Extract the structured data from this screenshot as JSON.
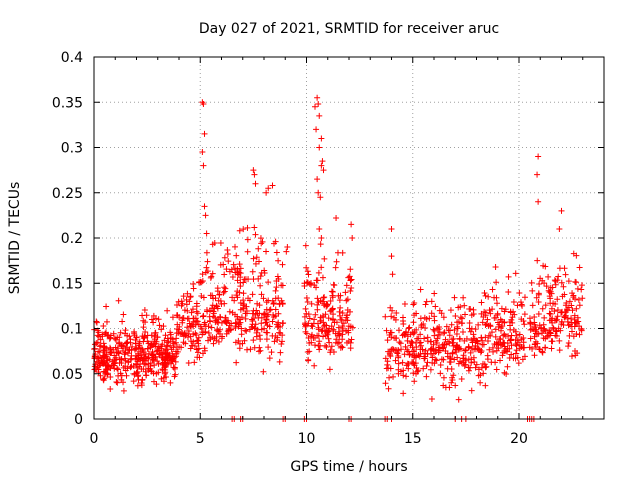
{
  "chart_data": {
    "type": "scatter",
    "title": "Day 027 of 2021, SRMTID for receiver aruc",
    "xlabel": "GPS time / hours",
    "ylabel": "SRMTID / TECUs",
    "xlim": [
      0,
      24
    ],
    "ylim": [
      0,
      0.4
    ],
    "grid": true,
    "marker": "plus",
    "color": "#ff0000",
    "x_ticks": [
      0,
      5,
      10,
      15,
      20
    ],
    "x_tick_labels": [
      "0",
      "5",
      "10",
      "15",
      "20"
    ],
    "y_ticks": [
      0,
      0.05,
      0.1,
      0.15,
      0.2,
      0.25,
      0.3,
      0.35,
      0.4
    ],
    "y_tick_labels": [
      "0",
      "0.05",
      "0.1",
      "0.15",
      "0.2",
      "0.25",
      "0.3",
      "0.35",
      "0.4"
    ],
    "segments": [
      {
        "x": [
          0.0,
          3.9
        ],
        "low": 0.03,
        "mid": 0.07,
        "high": 0.13,
        "count": 420
      },
      {
        "x": [
          3.9,
          5.0
        ],
        "low": 0.05,
        "mid": 0.1,
        "high": 0.17,
        "count": 90
      },
      {
        "x": [
          5.0,
          6.5
        ],
        "low": 0.06,
        "mid": 0.11,
        "high": 0.22,
        "count": 120
      },
      {
        "x": [
          6.5,
          8.9
        ],
        "low": 0.05,
        "mid": 0.12,
        "high": 0.26,
        "count": 200
      },
      {
        "x": [
          9.9,
          12.2
        ],
        "low": 0.04,
        "mid": 0.11,
        "high": 0.22,
        "count": 190
      },
      {
        "x": [
          13.7,
          18.7
        ],
        "low": 0.02,
        "mid": 0.08,
        "high": 0.15,
        "count": 380
      },
      {
        "x": [
          18.7,
          20.3
        ],
        "low": 0.04,
        "mid": 0.09,
        "high": 0.2,
        "count": 120
      },
      {
        "x": [
          20.5,
          23.0
        ],
        "low": 0.06,
        "mid": 0.11,
        "high": 0.21,
        "count": 190
      }
    ],
    "outliers": [
      {
        "x": 5.1,
        "y": 0.35
      },
      {
        "x": 5.15,
        "y": 0.348
      },
      {
        "x": 5.2,
        "y": 0.315
      },
      {
        "x": 5.1,
        "y": 0.295
      },
      {
        "x": 5.15,
        "y": 0.28
      },
      {
        "x": 5.2,
        "y": 0.235
      },
      {
        "x": 5.25,
        "y": 0.225
      },
      {
        "x": 5.3,
        "y": 0.205
      },
      {
        "x": 7.5,
        "y": 0.275
      },
      {
        "x": 7.55,
        "y": 0.27
      },
      {
        "x": 7.6,
        "y": 0.26
      },
      {
        "x": 8.4,
        "y": 0.258
      },
      {
        "x": 8.2,
        "y": 0.255
      },
      {
        "x": 8.1,
        "y": 0.25
      },
      {
        "x": 9.1,
        "y": 0.19
      },
      {
        "x": 9.05,
        "y": 0.185
      },
      {
        "x": 10.5,
        "y": 0.355
      },
      {
        "x": 10.4,
        "y": 0.345
      },
      {
        "x": 10.55,
        "y": 0.348
      },
      {
        "x": 10.6,
        "y": 0.335
      },
      {
        "x": 10.45,
        "y": 0.32
      },
      {
        "x": 10.7,
        "y": 0.31
      },
      {
        "x": 10.6,
        "y": 0.3
      },
      {
        "x": 10.75,
        "y": 0.285
      },
      {
        "x": 10.7,
        "y": 0.28
      },
      {
        "x": 10.8,
        "y": 0.275
      },
      {
        "x": 10.5,
        "y": 0.265
      },
      {
        "x": 10.55,
        "y": 0.25
      },
      {
        "x": 10.65,
        "y": 0.245
      },
      {
        "x": 10.6,
        "y": 0.21
      },
      {
        "x": 10.7,
        "y": 0.2
      },
      {
        "x": 12.1,
        "y": 0.215
      },
      {
        "x": 12.15,
        "y": 0.2
      },
      {
        "x": 14.0,
        "y": 0.21
      },
      {
        "x": 14.0,
        "y": 0.18
      },
      {
        "x": 14.05,
        "y": 0.16
      },
      {
        "x": 20.9,
        "y": 0.29
      },
      {
        "x": 20.85,
        "y": 0.27
      },
      {
        "x": 20.9,
        "y": 0.24
      },
      {
        "x": 22.0,
        "y": 0.23
      },
      {
        "x": 21.9,
        "y": 0.21
      }
    ],
    "zero_values_x": [
      6.5,
      6.6,
      6.9,
      7.0,
      8.9,
      9.0,
      9.9,
      10.0,
      12.0,
      12.1,
      13.7,
      13.8,
      14.0,
      17.0,
      17.3,
      17.5,
      20.4,
      20.5,
      20.6,
      20.7
    ]
  }
}
